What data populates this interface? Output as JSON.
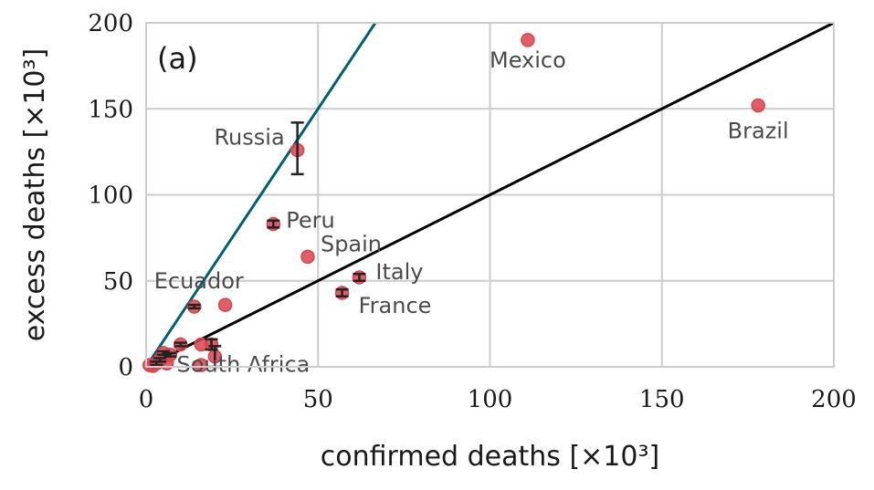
{
  "chart_data": {
    "type": "scatter",
    "panel_label": "(a)",
    "xlabel": "confirmed deaths [×10³]",
    "ylabel": "excess deaths [×10³]",
    "xlim": [
      0,
      200
    ],
    "ylim": [
      0,
      200
    ],
    "xticks": [
      "0",
      "50",
      "100",
      "150",
      "200"
    ],
    "yticks": [
      "0",
      "50",
      "100",
      "150",
      "200"
    ],
    "grid": true,
    "colors": {
      "points": "#d9434f",
      "errorbar": "#222222",
      "line_steep": "#00606f",
      "line_unity": "#000000"
    },
    "reference_lines": [
      {
        "slope": 1,
        "color": "#000000"
      },
      {
        "slope": 3,
        "color": "#00606f"
      }
    ],
    "points": [
      {
        "label": "Mexico",
        "x": 111,
        "y": 190
      },
      {
        "label": "Brazil",
        "x": 178,
        "y": 152
      },
      {
        "label": "Russia",
        "x": 44,
        "y": 126,
        "yerr": [
          112,
          142
        ]
      },
      {
        "label": "Peru",
        "x": 37,
        "y": 83,
        "yerr": [
          81,
          85
        ]
      },
      {
        "label": "Spain",
        "x": 47,
        "y": 64
      },
      {
        "label": "Italy",
        "x": 62,
        "y": 52,
        "yerr": [
          50,
          54
        ]
      },
      {
        "label": "France",
        "x": 57,
        "y": 43,
        "yerr": [
          41,
          45
        ]
      },
      {
        "label": "Ecuador",
        "x": 14,
        "y": 35,
        "yerr": [
          34,
          36
        ]
      },
      {
        "label": "",
        "x": 23,
        "y": 36
      },
      {
        "label": "South Africa",
        "x": 19,
        "y": 13,
        "yerr": [
          10,
          16
        ]
      },
      {
        "label": "",
        "x": 16,
        "y": 13
      },
      {
        "label": "",
        "x": 10,
        "y": 13,
        "yerr": [
          12,
          14
        ]
      },
      {
        "label": "",
        "x": 20,
        "y": 6,
        "yerr": [
          0,
          12
        ]
      },
      {
        "label": "",
        "x": 5,
        "y": 8,
        "yerr": [
          7,
          9
        ]
      },
      {
        "label": "",
        "x": 7,
        "y": 7,
        "yerr": [
          6,
          8
        ]
      },
      {
        "label": "",
        "x": 4,
        "y": 4,
        "yerr": [
          3,
          5
        ]
      },
      {
        "label": "",
        "x": 3,
        "y": 2,
        "yerr": [
          1,
          3
        ]
      },
      {
        "label": "",
        "x": 16,
        "y": 1
      },
      {
        "label": "",
        "x": 6,
        "y": 2
      },
      {
        "label": "",
        "x": 1,
        "y": 1
      },
      {
        "label": "",
        "x": 2,
        "y": 0.5
      }
    ]
  }
}
